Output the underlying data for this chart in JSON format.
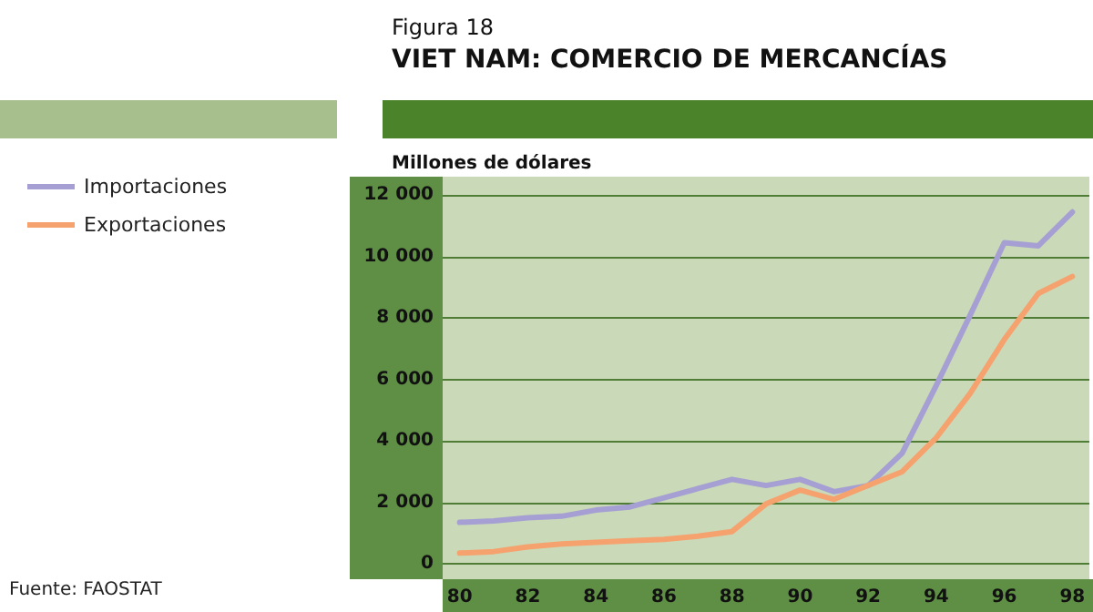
{
  "chart_data": {
    "type": "line",
    "subtitle": "Figura 18",
    "title": "VIET NAM: COMERCIO DE MERCANCÍAS",
    "ylabel": "Millones de dólares",
    "annotations": [
      "Fuente: FAOSTAT"
    ],
    "x": [
      80,
      81,
      82,
      83,
      84,
      85,
      86,
      87,
      88,
      89,
      90,
      91,
      92,
      93,
      94,
      95,
      96,
      97,
      98
    ],
    "series": [
      {
        "name": "Importaciones",
        "color": "#a59fd3",
        "values": [
          1350,
          1400,
          1500,
          1550,
          1750,
          1850,
          2150,
          2450,
          2750,
          2550,
          2750,
          2350,
          2550,
          3600,
          5800,
          8100,
          10450,
          10350,
          11450
        ]
      },
      {
        "name": "Exportaciones",
        "color": "#f5a26e",
        "values": [
          350,
          400,
          550,
          650,
          700,
          750,
          800,
          900,
          1050,
          1950,
          2400,
          2100,
          2550,
          3000,
          4100,
          5550,
          7300,
          8800,
          9350
        ]
      }
    ],
    "xlim": [
      79.5,
      98.5
    ],
    "xticks": [
      80,
      82,
      84,
      86,
      88,
      90,
      92,
      94,
      96,
      98
    ],
    "ylim": [
      -500,
      12600
    ],
    "yticks": [
      0,
      {
        "value": 2000,
        "label": "2 000"
      },
      {
        "value": 4000,
        "label": "4 000"
      },
      {
        "value": 6000,
        "label": "6 000"
      },
      {
        "value": 8000,
        "label": "8 000"
      },
      {
        "value": 10000,
        "label": "10 000"
      },
      {
        "value": 12000,
        "label": "12 000"
      }
    ],
    "grid": "y",
    "legend": "left",
    "marker": "none",
    "line_style": "solid"
  }
}
